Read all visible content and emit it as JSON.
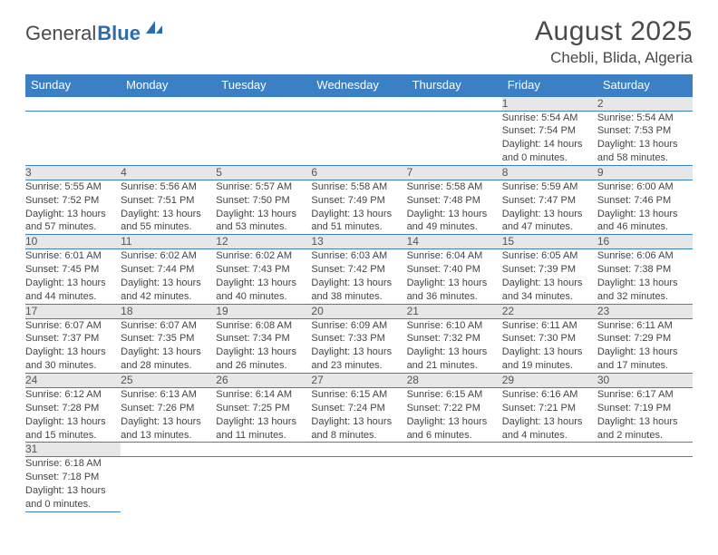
{
  "logo": {
    "part1": "General",
    "part2": "Blue"
  },
  "title": "August 2025",
  "location": "Chebli, Blida, Algeria",
  "colors": {
    "header_bg": "#3b7fc4",
    "header_text": "#ffffff",
    "daynum_bg": "#e7e7e7",
    "border": "#3b7fc4",
    "text": "#444444"
  },
  "weekdays": [
    "Sunday",
    "Monday",
    "Tuesday",
    "Wednesday",
    "Thursday",
    "Friday",
    "Saturday"
  ],
  "weeks": [
    [
      null,
      null,
      null,
      null,
      null,
      {
        "d": "1",
        "sr": "Sunrise: 5:54 AM",
        "ss": "Sunset: 7:54 PM",
        "dl1": "Daylight: 14 hours",
        "dl2": "and 0 minutes."
      },
      {
        "d": "2",
        "sr": "Sunrise: 5:54 AM",
        "ss": "Sunset: 7:53 PM",
        "dl1": "Daylight: 13 hours",
        "dl2": "and 58 minutes."
      }
    ],
    [
      {
        "d": "3",
        "sr": "Sunrise: 5:55 AM",
        "ss": "Sunset: 7:52 PM",
        "dl1": "Daylight: 13 hours",
        "dl2": "and 57 minutes."
      },
      {
        "d": "4",
        "sr": "Sunrise: 5:56 AM",
        "ss": "Sunset: 7:51 PM",
        "dl1": "Daylight: 13 hours",
        "dl2": "and 55 minutes."
      },
      {
        "d": "5",
        "sr": "Sunrise: 5:57 AM",
        "ss": "Sunset: 7:50 PM",
        "dl1": "Daylight: 13 hours",
        "dl2": "and 53 minutes."
      },
      {
        "d": "6",
        "sr": "Sunrise: 5:58 AM",
        "ss": "Sunset: 7:49 PM",
        "dl1": "Daylight: 13 hours",
        "dl2": "and 51 minutes."
      },
      {
        "d": "7",
        "sr": "Sunrise: 5:58 AM",
        "ss": "Sunset: 7:48 PM",
        "dl1": "Daylight: 13 hours",
        "dl2": "and 49 minutes."
      },
      {
        "d": "8",
        "sr": "Sunrise: 5:59 AM",
        "ss": "Sunset: 7:47 PM",
        "dl1": "Daylight: 13 hours",
        "dl2": "and 47 minutes."
      },
      {
        "d": "9",
        "sr": "Sunrise: 6:00 AM",
        "ss": "Sunset: 7:46 PM",
        "dl1": "Daylight: 13 hours",
        "dl2": "and 46 minutes."
      }
    ],
    [
      {
        "d": "10",
        "sr": "Sunrise: 6:01 AM",
        "ss": "Sunset: 7:45 PM",
        "dl1": "Daylight: 13 hours",
        "dl2": "and 44 minutes."
      },
      {
        "d": "11",
        "sr": "Sunrise: 6:02 AM",
        "ss": "Sunset: 7:44 PM",
        "dl1": "Daylight: 13 hours",
        "dl2": "and 42 minutes."
      },
      {
        "d": "12",
        "sr": "Sunrise: 6:02 AM",
        "ss": "Sunset: 7:43 PM",
        "dl1": "Daylight: 13 hours",
        "dl2": "and 40 minutes."
      },
      {
        "d": "13",
        "sr": "Sunrise: 6:03 AM",
        "ss": "Sunset: 7:42 PM",
        "dl1": "Daylight: 13 hours",
        "dl2": "and 38 minutes."
      },
      {
        "d": "14",
        "sr": "Sunrise: 6:04 AM",
        "ss": "Sunset: 7:40 PM",
        "dl1": "Daylight: 13 hours",
        "dl2": "and 36 minutes."
      },
      {
        "d": "15",
        "sr": "Sunrise: 6:05 AM",
        "ss": "Sunset: 7:39 PM",
        "dl1": "Daylight: 13 hours",
        "dl2": "and 34 minutes."
      },
      {
        "d": "16",
        "sr": "Sunrise: 6:06 AM",
        "ss": "Sunset: 7:38 PM",
        "dl1": "Daylight: 13 hours",
        "dl2": "and 32 minutes."
      }
    ],
    [
      {
        "d": "17",
        "sr": "Sunrise: 6:07 AM",
        "ss": "Sunset: 7:37 PM",
        "dl1": "Daylight: 13 hours",
        "dl2": "and 30 minutes."
      },
      {
        "d": "18",
        "sr": "Sunrise: 6:07 AM",
        "ss": "Sunset: 7:35 PM",
        "dl1": "Daylight: 13 hours",
        "dl2": "and 28 minutes."
      },
      {
        "d": "19",
        "sr": "Sunrise: 6:08 AM",
        "ss": "Sunset: 7:34 PM",
        "dl1": "Daylight: 13 hours",
        "dl2": "and 26 minutes."
      },
      {
        "d": "20",
        "sr": "Sunrise: 6:09 AM",
        "ss": "Sunset: 7:33 PM",
        "dl1": "Daylight: 13 hours",
        "dl2": "and 23 minutes."
      },
      {
        "d": "21",
        "sr": "Sunrise: 6:10 AM",
        "ss": "Sunset: 7:32 PM",
        "dl1": "Daylight: 13 hours",
        "dl2": "and 21 minutes."
      },
      {
        "d": "22",
        "sr": "Sunrise: 6:11 AM",
        "ss": "Sunset: 7:30 PM",
        "dl1": "Daylight: 13 hours",
        "dl2": "and 19 minutes."
      },
      {
        "d": "23",
        "sr": "Sunrise: 6:11 AM",
        "ss": "Sunset: 7:29 PM",
        "dl1": "Daylight: 13 hours",
        "dl2": "and 17 minutes."
      }
    ],
    [
      {
        "d": "24",
        "sr": "Sunrise: 6:12 AM",
        "ss": "Sunset: 7:28 PM",
        "dl1": "Daylight: 13 hours",
        "dl2": "and 15 minutes."
      },
      {
        "d": "25",
        "sr": "Sunrise: 6:13 AM",
        "ss": "Sunset: 7:26 PM",
        "dl1": "Daylight: 13 hours",
        "dl2": "and 13 minutes."
      },
      {
        "d": "26",
        "sr": "Sunrise: 6:14 AM",
        "ss": "Sunset: 7:25 PM",
        "dl1": "Daylight: 13 hours",
        "dl2": "and 11 minutes."
      },
      {
        "d": "27",
        "sr": "Sunrise: 6:15 AM",
        "ss": "Sunset: 7:24 PM",
        "dl1": "Daylight: 13 hours",
        "dl2": "and 8 minutes."
      },
      {
        "d": "28",
        "sr": "Sunrise: 6:15 AM",
        "ss": "Sunset: 7:22 PM",
        "dl1": "Daylight: 13 hours",
        "dl2": "and 6 minutes."
      },
      {
        "d": "29",
        "sr": "Sunrise: 6:16 AM",
        "ss": "Sunset: 7:21 PM",
        "dl1": "Daylight: 13 hours",
        "dl2": "and 4 minutes."
      },
      {
        "d": "30",
        "sr": "Sunrise: 6:17 AM",
        "ss": "Sunset: 7:19 PM",
        "dl1": "Daylight: 13 hours",
        "dl2": "and 2 minutes."
      }
    ],
    [
      {
        "d": "31",
        "sr": "Sunrise: 6:18 AM",
        "ss": "Sunset: 7:18 PM",
        "dl1": "Daylight: 13 hours",
        "dl2": "and 0 minutes."
      },
      null,
      null,
      null,
      null,
      null,
      null
    ]
  ]
}
